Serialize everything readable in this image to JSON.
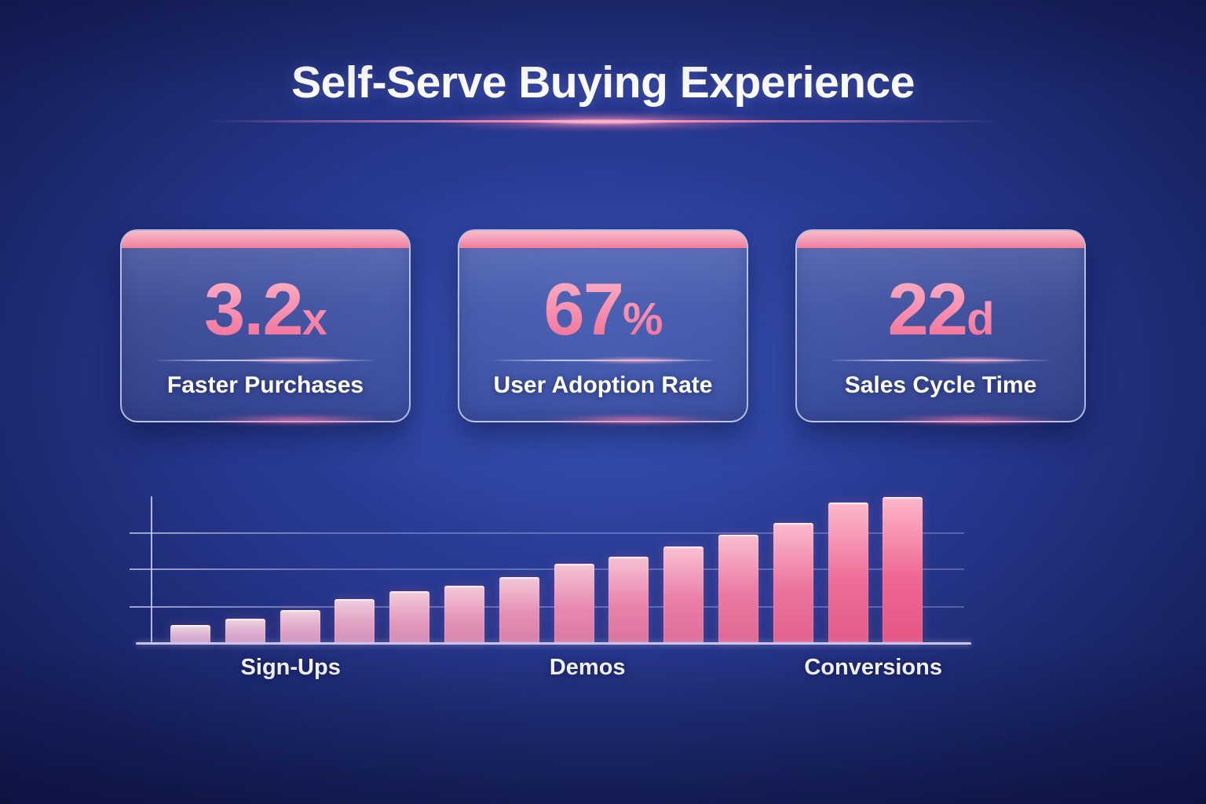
{
  "header": {
    "title": "Self-Serve Buying Experience"
  },
  "stats": [
    {
      "value": "3.2",
      "suffix": "x",
      "label": "Faster Purchases"
    },
    {
      "value": "67",
      "suffix": "%",
      "label": "User Adoption Rate"
    },
    {
      "value": "22",
      "suffix": "d",
      "label": "Sales Cycle Time"
    }
  ],
  "chart_data": {
    "type": "bar",
    "title": "",
    "xlabel": "",
    "ylabel": "",
    "values": [
      12,
      16,
      22,
      30,
      35,
      39,
      45,
      54,
      59,
      66,
      74,
      82,
      96,
      100
    ],
    "ylim": [
      0,
      100
    ],
    "grid": true,
    "gridline_count": 3,
    "legend": "none",
    "stage_labels": [
      {
        "label": "Sign-Ups",
        "position_pct": 19
      },
      {
        "label": "Demos",
        "position_pct": 54
      },
      {
        "label": "Conversions",
        "position_pct": 87.7
      }
    ]
  },
  "colors": {
    "background_center": "#2f49a7",
    "background_edge": "#111850",
    "accent_pink": "#f4729b",
    "card_strip_top": "#f9bcca",
    "card_strip_bottom": "#ee7c9d",
    "stat_number_top": "#fbb3c6",
    "stat_number_bottom": "#ef6d95",
    "bar_first": {
      "top": "#ecd3e2",
      "mid": "#ddb3d3",
      "bottom": "#cfa2c7"
    },
    "bar_last": {
      "top": "#fdb6c8",
      "mid": "#ef6793",
      "bottom": "#e45684"
    },
    "baseline": "#c9c5ea",
    "text": "#ffffff"
  }
}
